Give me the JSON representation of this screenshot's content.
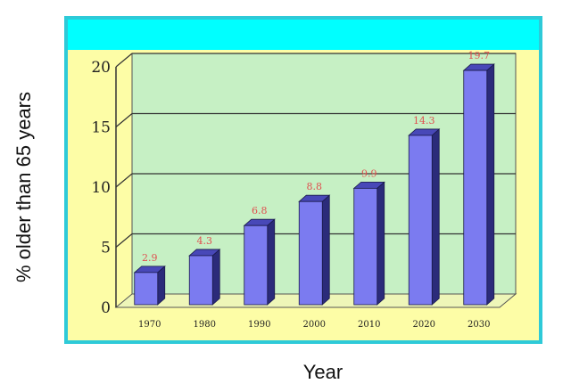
{
  "chart_data": {
    "type": "bar",
    "categories": [
      "1970",
      "1980",
      "1990",
      "2000",
      "2010",
      "2020",
      "2030"
    ],
    "values": [
      2.9,
      4.3,
      6.8,
      8.8,
      9.9,
      14.3,
      19.7
    ],
    "data_labels": [
      "2.9",
      "4.3",
      "6.8",
      "8.8",
      "9.9",
      "14.3",
      "19.7"
    ],
    "xlabel": "Year",
    "ylabel": "% older than 65 years",
    "ylim": [
      0,
      20
    ],
    "yticks": [
      0,
      5,
      10,
      15,
      20
    ],
    "grid": true,
    "legend": "none",
    "colors": {
      "bar_front": "#7b7bf0",
      "bar_side": "#2b2b7a",
      "bar_top": "#4848b8",
      "plot_wall": "#c6f0c4",
      "floor": "#eef6b8",
      "background": "#fdfda6",
      "header_band": "#00ffff",
      "border": "#2ecad8",
      "data_label": "#e05050"
    }
  }
}
